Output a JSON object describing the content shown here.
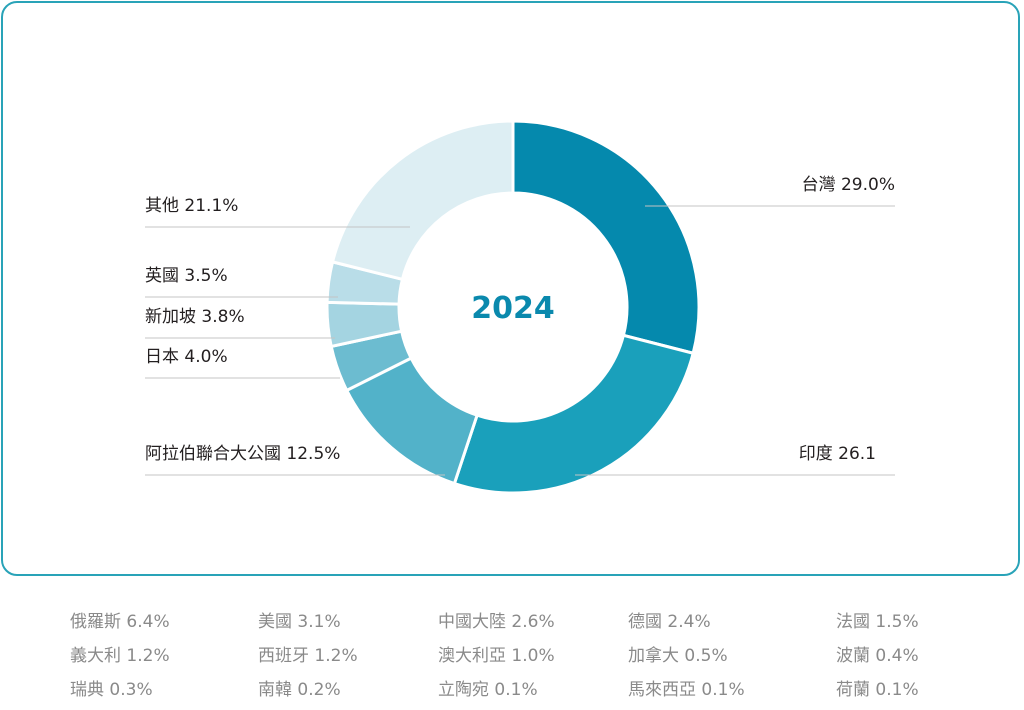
{
  "chart_data": {
    "type": "pie",
    "center_label": "2024",
    "slices": [
      {
        "label": "台灣 29.0%",
        "value": 29.0,
        "color": "#0589ad"
      },
      {
        "label": "印度 26.1",
        "value": 26.1,
        "color": "#1aa0bb"
      },
      {
        "label": "阿拉伯聯合大公國 12.5%",
        "value": 12.5,
        "color": "#52b2c9"
      },
      {
        "label": "日本 4.0%",
        "value": 4.0,
        "color": "#6cbcd0"
      },
      {
        "label": "新加坡 3.8%",
        "value": 3.8,
        "color": "#a4d4e1"
      },
      {
        "label": "英國 3.5%",
        "value": 3.5,
        "color": "#b9dde8"
      },
      {
        "label": "其他 21.1%",
        "value": 21.1,
        "color": "#ddeef3"
      }
    ],
    "others_breakdown": [
      "俄羅斯 6.4%",
      "美國 3.1%",
      "中國大陸 2.6%",
      "德國 2.4%",
      "法國 1.5%",
      "義大利 1.2%",
      "西班牙 1.2%",
      "澳大利亞 1.0%",
      "加拿大 0.5%",
      "波蘭 0.4%",
      "瑞典 0.3%",
      "南韓 0.2%",
      "立陶宛 0.1%",
      "馬來西亞 0.1%",
      "荷蘭 0.1%"
    ]
  }
}
